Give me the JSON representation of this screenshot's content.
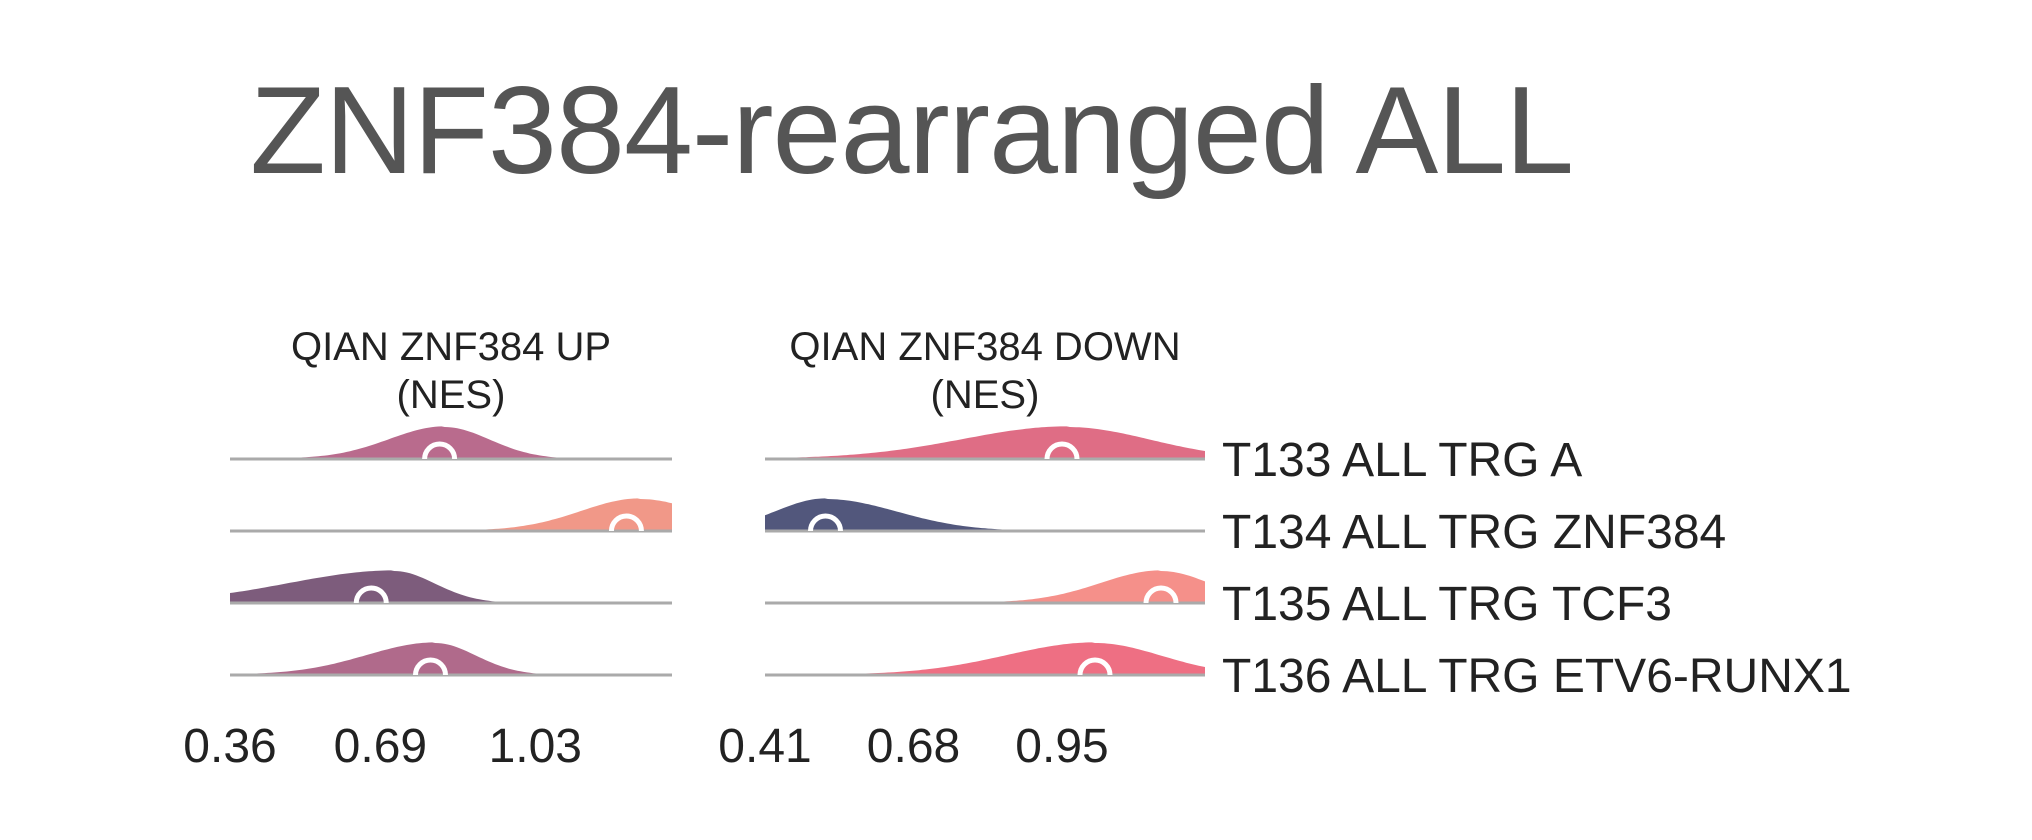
{
  "title": "ZNF384-rearranged ALL",
  "chart_data": [
    {
      "type": "ridgeline",
      "title": "QIAN ZNF384 UP",
      "subtitle": "(NES)",
      "xlim": [
        0.36,
        1.33
      ],
      "x_ticks": [
        0.36,
        0.69,
        1.03
      ],
      "x_tick_labels": [
        "0.36",
        "0.69",
        "1.03"
      ],
      "rows": [
        {
          "label": "T133 ALL TRG A",
          "color": "#b96b8d",
          "median": 0.82,
          "peak": 0.83,
          "peak_height": 1.0,
          "width_left": 0.12,
          "width_right": 0.1,
          "clip_right": false
        },
        {
          "label": "T134 ALL TRG ZNF384",
          "color": "#f19888",
          "median": 1.23,
          "peak": 1.26,
          "peak_height": 1.0,
          "width_left": 0.13,
          "width_right": 0.13,
          "clip_right": true
        },
        {
          "label": "T135 ALL TRG TCF3",
          "color": "#7d5c7c",
          "median": 0.67,
          "peak": 0.72,
          "peak_height": 1.0,
          "width_left": 0.23,
          "width_right": 0.09,
          "clip_right": false
        },
        {
          "label": "T136 ALL TRG ETV6-RUNX1",
          "color": "#b06a8b",
          "median": 0.8,
          "peak": 0.81,
          "peak_height": 1.0,
          "width_left": 0.15,
          "width_right": 0.09,
          "clip_right": false
        }
      ]
    },
    {
      "type": "ridgeline",
      "title": "QIAN ZNF384 DOWN",
      "subtitle": "(NES)",
      "xlim": [
        0.41,
        1.21
      ],
      "x_ticks": [
        0.41,
        0.68,
        0.95
      ],
      "x_tick_labels": [
        "0.41",
        "0.68",
        "0.95"
      ],
      "rows": [
        {
          "label": "T133 ALL TRG A",
          "color": "#df6d85",
          "median": 0.95,
          "peak": 0.96,
          "peak_height": 1.0,
          "width_left": 0.19,
          "width_right": 0.15,
          "clip_right": false
        },
        {
          "label": "T134 ALL TRG ZNF384",
          "color": "#52577c",
          "median": 0.52,
          "peak": 0.52,
          "peak_height": 1.0,
          "width_left": 0.09,
          "width_right": 0.13,
          "clip_right": false
        },
        {
          "label": "T135 ALL TRG TCF3",
          "color": "#f5908a",
          "median": 1.13,
          "peak": 1.13,
          "peak_height": 1.0,
          "width_left": 0.11,
          "width_right": 0.09,
          "clip_right": true
        },
        {
          "label": "T136 ALL TRG ETV6-RUNX1",
          "color": "#ee6f83",
          "median": 1.01,
          "peak": 1.01,
          "peak_height": 1.0,
          "width_left": 0.16,
          "width_right": 0.12,
          "clip_right": false
        }
      ]
    }
  ]
}
